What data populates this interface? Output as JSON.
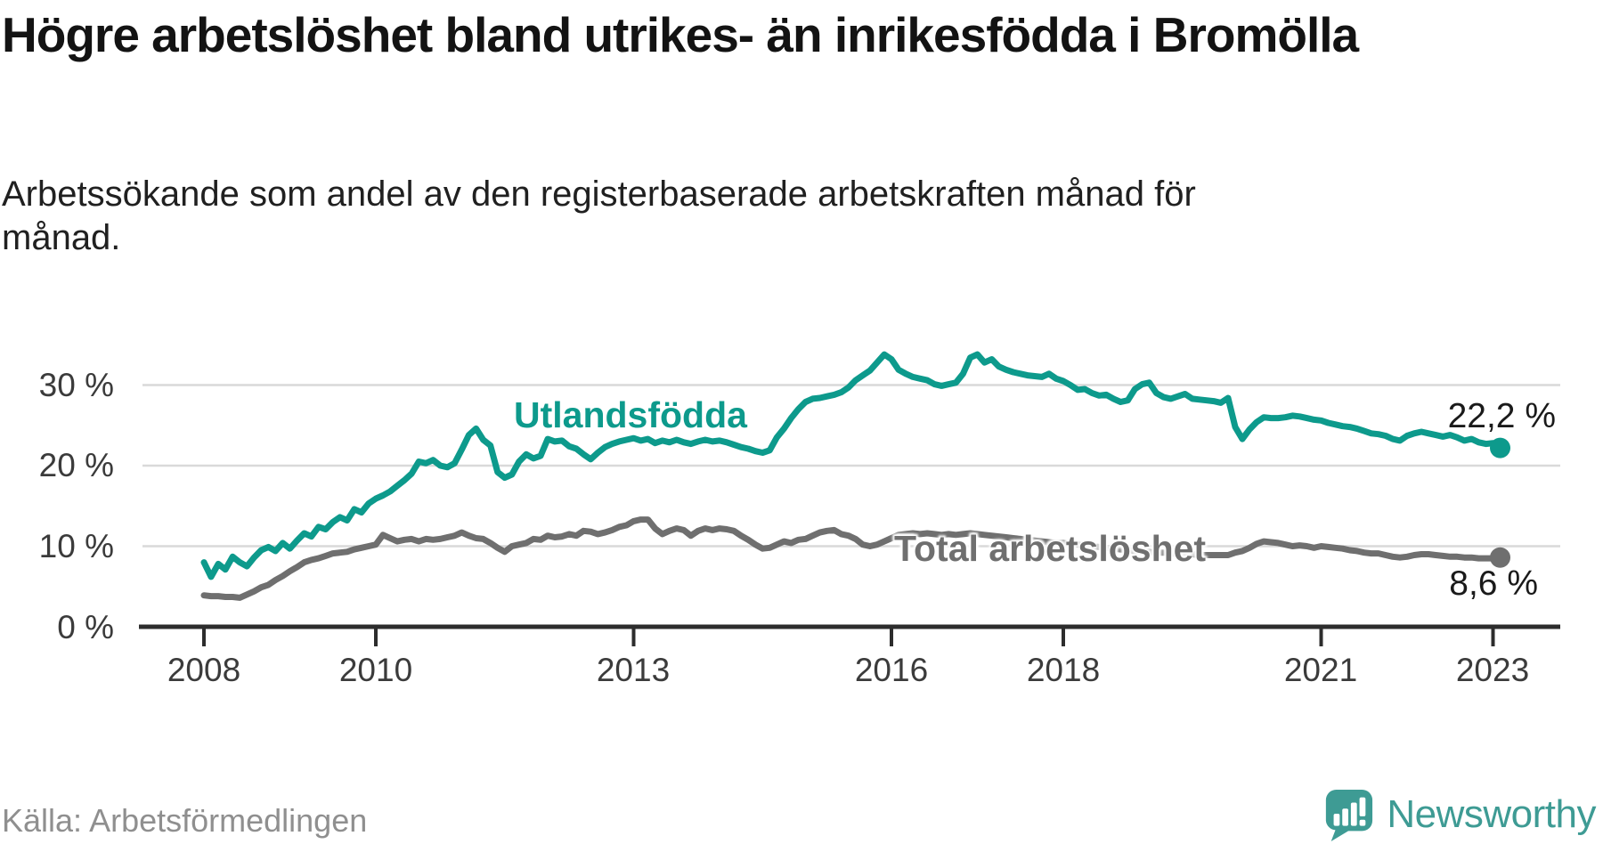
{
  "header": {
    "title": "Högre arbetslöshet bland utrikes- än inrikesfödda i Bromölla",
    "subtitle": "Arbetssökande som andel av den registerbaserade arbetskraften månad för månad."
  },
  "footer": {
    "source": "Källa: Arbetsförmedlingen",
    "brand": "Newsworthy"
  },
  "colors": {
    "foreign_born_line": "#0d9a8c",
    "total_line": "#6f6f6f",
    "gridline": "#d9d9d9",
    "axis": "#2d2d2d",
    "brand_teal": "#3e9b94"
  },
  "chart_data": {
    "type": "line",
    "unit": "%",
    "frequency": "monthly",
    "x_start": "2008-01",
    "x_end": "2023-02",
    "ylim": [
      0,
      36
    ],
    "grid": "horizontal",
    "x_ticks": [
      2008,
      2010,
      2013,
      2016,
      2018,
      2021,
      2023
    ],
    "y_ticks": [
      {
        "value": 0,
        "label": "0 %"
      },
      {
        "value": 10,
        "label": "10 %"
      },
      {
        "value": 20,
        "label": "20 %"
      },
      {
        "value": 30,
        "label": "30 %"
      }
    ],
    "series": [
      {
        "name": "Utlandsfödda",
        "end_label": "22,2 %",
        "end_value": 22.2,
        "color": "#0d9a8c",
        "values": [
          8.0,
          6.2,
          7.8,
          7.1,
          8.7,
          8.0,
          7.5,
          8.6,
          9.5,
          9.9,
          9.4,
          10.4,
          9.7,
          10.7,
          11.6,
          11.2,
          12.4,
          12.1,
          13.0,
          13.6,
          13.2,
          14.6,
          14.2,
          15.3,
          15.9,
          16.3,
          16.8,
          17.5,
          18.2,
          19.0,
          20.5,
          20.3,
          20.7,
          20.0,
          19.8,
          20.3,
          22.0,
          23.8,
          24.6,
          23.2,
          22.5,
          19.2,
          18.5,
          18.9,
          20.5,
          21.4,
          20.9,
          21.2,
          23.3,
          23.0,
          23.1,
          22.4,
          22.1,
          21.4,
          20.8,
          21.6,
          22.3,
          22.7,
          23.0,
          23.2,
          23.4,
          23.1,
          23.3,
          22.8,
          23.1,
          22.9,
          23.2,
          22.9,
          22.7,
          23.0,
          23.2,
          23.0,
          23.1,
          22.9,
          22.6,
          22.3,
          22.1,
          21.8,
          21.6,
          21.9,
          23.5,
          24.6,
          25.9,
          27.0,
          27.9,
          28.3,
          28.4,
          28.6,
          28.8,
          29.1,
          29.7,
          30.6,
          31.2,
          31.8,
          32.8,
          33.8,
          33.2,
          31.9,
          31.4,
          31.0,
          30.8,
          30.6,
          30.1,
          29.9,
          30.1,
          30.3,
          31.4,
          33.4,
          33.8,
          32.8,
          33.2,
          32.3,
          31.9,
          31.6,
          31.4,
          31.2,
          31.1,
          31.0,
          31.4,
          30.8,
          30.5,
          30.0,
          29.4,
          29.5,
          29.0,
          28.7,
          28.8,
          28.3,
          27.9,
          28.1,
          29.5,
          30.1,
          30.3,
          29.0,
          28.5,
          28.3,
          28.6,
          28.9,
          28.3,
          28.2,
          28.1,
          28.0,
          27.8,
          28.4,
          24.8,
          23.3,
          24.5,
          25.4,
          26.0,
          25.9,
          25.9,
          26.0,
          26.2,
          26.1,
          25.9,
          25.7,
          25.6,
          25.3,
          25.1,
          24.9,
          24.8,
          24.6,
          24.3,
          24.0,
          23.9,
          23.7,
          23.3,
          23.1,
          23.7,
          24.0,
          24.2,
          24.0,
          23.8,
          23.6,
          23.8,
          23.5,
          23.1,
          23.3,
          22.9,
          22.7,
          22.8,
          22.2
        ]
      },
      {
        "name": "Total arbetslöshet",
        "end_label": "8,6 %",
        "end_value": 8.6,
        "color": "#6f6f6f",
        "values": [
          3.9,
          3.8,
          3.8,
          3.7,
          3.7,
          3.6,
          4.0,
          4.4,
          4.9,
          5.2,
          5.8,
          6.3,
          6.9,
          7.4,
          8.0,
          8.3,
          8.5,
          8.8,
          9.1,
          9.2,
          9.3,
          9.6,
          9.8,
          10.0,
          10.2,
          11.4,
          11.0,
          10.6,
          10.8,
          10.9,
          10.6,
          10.9,
          10.8,
          10.9,
          11.1,
          11.3,
          11.7,
          11.3,
          11.0,
          10.9,
          10.4,
          9.8,
          9.3,
          10.0,
          10.2,
          10.4,
          10.9,
          10.8,
          11.3,
          11.1,
          11.2,
          11.5,
          11.3,
          11.9,
          11.8,
          11.5,
          11.7,
          12.0,
          12.4,
          12.6,
          13.1,
          13.3,
          13.3,
          12.2,
          11.5,
          11.9,
          12.2,
          12.0,
          11.3,
          11.9,
          12.2,
          12.0,
          12.2,
          12.1,
          11.9,
          11.3,
          10.8,
          10.2,
          9.7,
          9.8,
          10.2,
          10.6,
          10.4,
          10.8,
          10.9,
          11.3,
          11.7,
          11.9,
          12.0,
          11.5,
          11.3,
          10.9,
          10.2,
          10.0,
          10.2,
          10.6,
          11.0,
          11.4,
          11.5,
          11.6,
          11.5,
          11.6,
          11.5,
          11.4,
          11.5,
          11.4,
          11.5,
          11.6,
          11.5,
          11.4,
          11.3,
          11.2,
          11.1,
          11.0,
          10.9,
          10.8,
          10.7,
          10.6,
          10.5,
          10.4,
          10.4,
          10.3,
          10.2,
          10.1,
          10.0,
          9.9,
          9.8,
          9.7,
          9.6,
          9.5,
          9.4,
          9.4,
          9.3,
          9.2,
          9.2,
          9.1,
          9.1,
          9.0,
          9.0,
          8.9,
          8.9,
          8.9,
          8.9,
          8.9,
          9.2,
          9.4,
          9.8,
          10.3,
          10.6,
          10.5,
          10.4,
          10.2,
          10.0,
          10.1,
          10.0,
          9.8,
          10.0,
          9.9,
          9.8,
          9.7,
          9.5,
          9.4,
          9.2,
          9.1,
          9.1,
          8.9,
          8.7,
          8.6,
          8.7,
          8.9,
          9.0,
          9.0,
          8.9,
          8.8,
          8.7,
          8.7,
          8.6,
          8.6,
          8.5,
          8.5,
          8.5,
          8.6
        ]
      }
    ]
  }
}
